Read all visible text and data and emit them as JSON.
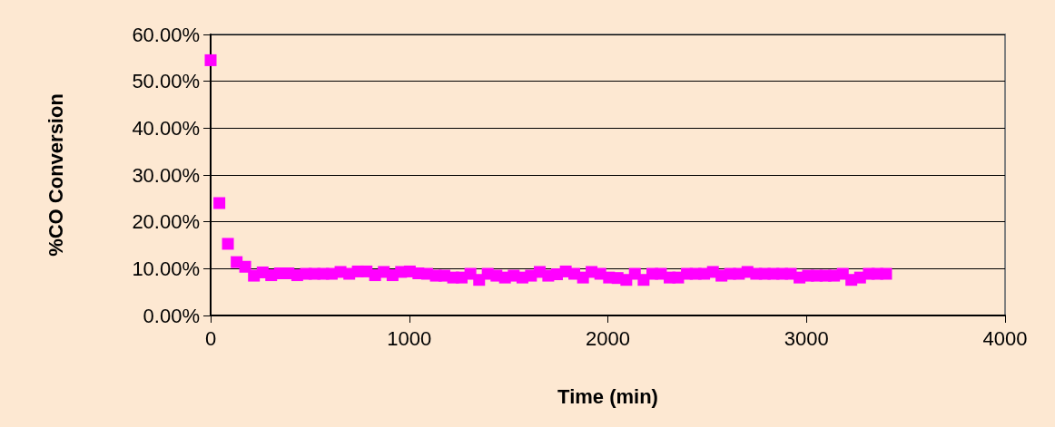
{
  "chart_data": {
    "type": "scatter",
    "xlabel": "Time (min)",
    "ylabel": "%CO Conversion",
    "x": [
      0,
      44,
      87,
      131,
      174,
      218,
      262,
      305,
      349,
      392,
      436,
      480,
      523,
      567,
      610,
      654,
      698,
      741,
      785,
      828,
      872,
      916,
      959,
      1003,
      1046,
      1090,
      1134,
      1177,
      1221,
      1264,
      1308,
      1352,
      1395,
      1439,
      1482,
      1526,
      1570,
      1613,
      1657,
      1700,
      1744,
      1788,
      1831,
      1875,
      1918,
      1962,
      2006,
      2049,
      2093,
      2136,
      2180,
      2224,
      2267,
      2311,
      2354,
      2398,
      2442,
      2485,
      2529,
      2572,
      2616,
      2660,
      2703,
      2747,
      2790,
      2834,
      2878,
      2921,
      2965,
      3008,
      3052,
      3096,
      3139,
      3183,
      3226,
      3270,
      3314,
      3357,
      3401
    ],
    "series": [
      {
        "color": "#ff00ff",
        "values": [
          54.5,
          24,
          15.3,
          11.4,
          10.4,
          8.5,
          9.2,
          8.6,
          9.0,
          9.0,
          8.6,
          8.9,
          8.9,
          8.9,
          8.9,
          9.3,
          8.9,
          9.4,
          9.4,
          8.6,
          9.3,
          8.6,
          9.3,
          9.4,
          9.0,
          8.9,
          8.5,
          8.5,
          8.1,
          8.1,
          8.9,
          7.6,
          8.9,
          8.5,
          8.1,
          8.5,
          8.1,
          8.5,
          9.3,
          8.5,
          8.8,
          9.4,
          8.9,
          8.1,
          9.3,
          8.9,
          8.1,
          8.0,
          7.6,
          8.9,
          7.6,
          8.9,
          8.9,
          8.1,
          8.1,
          8.9,
          8.9,
          8.9,
          9.3,
          8.5,
          8.9,
          8.9,
          9.3,
          8.9,
          8.9,
          8.9,
          8.9,
          8.9,
          8.1,
          8.5,
          8.5,
          8.5,
          8.5,
          8.9,
          7.6,
          8.1,
          8.9,
          8.9,
          8.9
        ]
      }
    ],
    "xlim": [
      0,
      4000
    ],
    "xticks": [
      0,
      1000,
      2000,
      3000,
      4000
    ],
    "ylim": [
      0,
      60
    ],
    "yticks": [
      {
        "value": 0,
        "label": "0.00%"
      },
      {
        "value": 10,
        "label": "10.00%"
      },
      {
        "value": 20,
        "label": "20.00%"
      },
      {
        "value": 30,
        "label": "30.00%"
      },
      {
        "value": 40,
        "label": "40.00%"
      },
      {
        "value": 50,
        "label": "50.00%"
      },
      {
        "value": 60,
        "label": "60.00%"
      }
    ],
    "grid": "y",
    "marker": "square"
  }
}
